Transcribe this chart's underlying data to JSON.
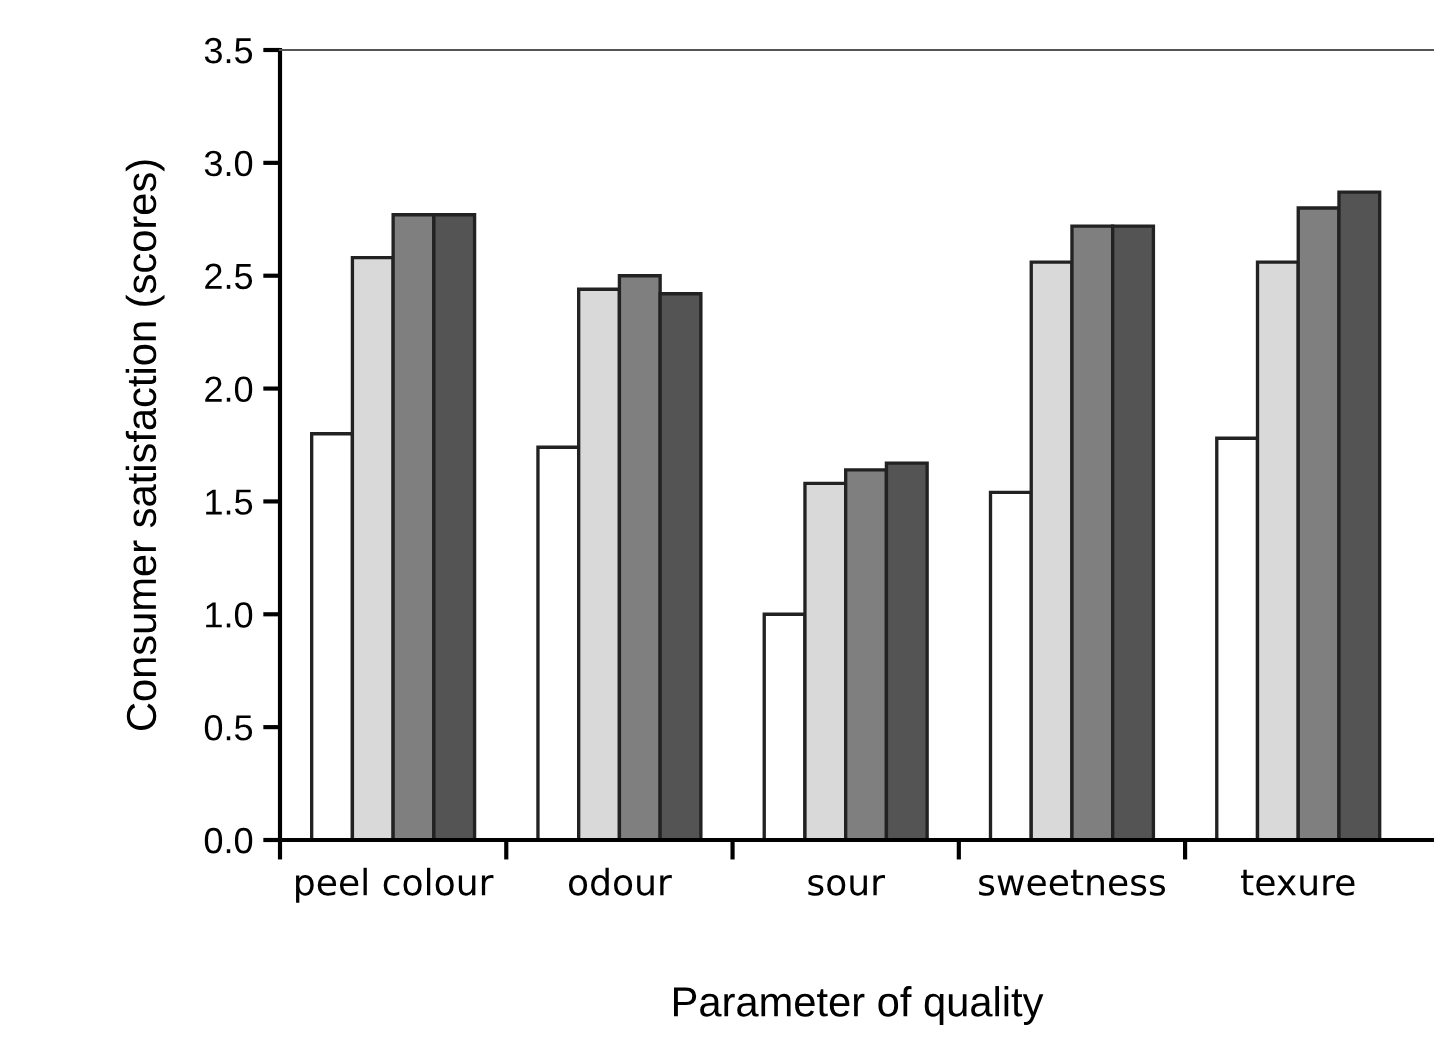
{
  "chart_data": {
    "type": "bar",
    "xlabel": "Parameter of quality",
    "ylabel": "Consumer satisfaction (scores)",
    "categories": [
      "peel colour",
      "odour",
      "sour",
      "sweetness",
      "texure"
    ],
    "series": [
      {
        "color": "#ffffff",
        "values": [
          1.8,
          1.74,
          1.0,
          1.54,
          1.78
        ]
      },
      {
        "color": "#d9d9d9",
        "values": [
          2.58,
          2.44,
          1.58,
          2.56,
          2.56
        ]
      },
      {
        "color": "#7f7f7f",
        "values": [
          2.77,
          2.5,
          1.64,
          2.72,
          2.8
        ]
      },
      {
        "color": "#545454",
        "values": [
          2.77,
          2.42,
          1.67,
          2.72,
          2.87
        ]
      }
    ],
    "ylim": [
      0,
      3.5
    ],
    "yticks": [
      {
        "value": 0,
        "label": "0.0"
      },
      {
        "value": 0.5,
        "label": "0.5"
      },
      {
        "value": 1,
        "label": "1.0"
      },
      {
        "value": 1.5,
        "label": "1.5"
      },
      {
        "value": 2,
        "label": "2.0"
      },
      {
        "value": 2.5,
        "label": "2.5"
      },
      {
        "value": 3,
        "label": "3.0"
      },
      {
        "value": 3.5,
        "label": "3.5"
      }
    ],
    "grid": false,
    "legend": false
  }
}
